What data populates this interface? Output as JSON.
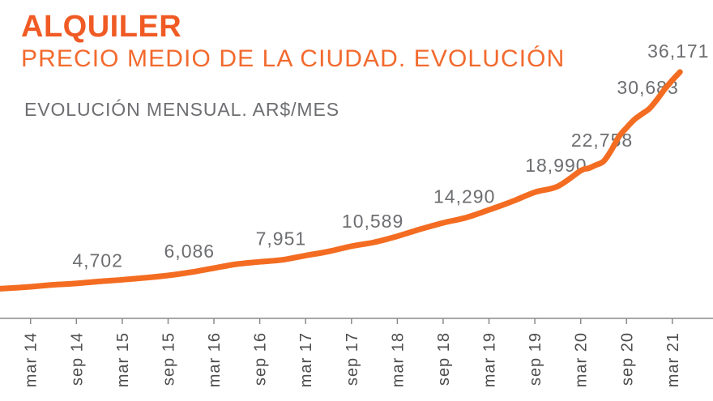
{
  "chart_data": {
    "type": "line",
    "title": "ALQUILER",
    "subtitle": "PRECIO MEDIO DE LA CIUDAD. EVOLUCIÓN",
    "note": "EVOLUCIÓN MENSUAL. AR$/MES",
    "x": [
      "2013-11",
      "2014-03",
      "2014-06",
      "2014-09",
      "2014-12",
      "2015-03",
      "2015-06",
      "2015-09",
      "2015-12",
      "2016-03",
      "2016-06",
      "2016-09",
      "2016-12",
      "2017-03",
      "2017-06",
      "2017-09",
      "2017-12",
      "2018-03",
      "2018-06",
      "2018-09",
      "2018-12",
      "2019-03",
      "2019-06",
      "2019-09",
      "2019-12",
      "2020-03",
      "2020-04",
      "2020-05",
      "2020-06",
      "2020-07",
      "2020-08",
      "2020-09",
      "2020-10",
      "2020-11",
      "2020-12",
      "2021-01",
      "2021-02",
      "2021-03",
      "2021-04"
    ],
    "y": [
      3600,
      3900,
      4200,
      4400,
      4702,
      4950,
      5250,
      5600,
      6086,
      6700,
      7300,
      7650,
      7951,
      8600,
      9200,
      10000,
      10589,
      11500,
      12550,
      13500,
      14290,
      15450,
      16700,
      18100,
      18990,
      21350,
      21700,
      22200,
      22758,
      24400,
      26450,
      27800,
      29000,
      29850,
      30683,
      32050,
      33600,
      34950,
      36171
    ],
    "xlim": [
      "2013-11",
      "2021-08"
    ],
    "ylim": [
      0,
      47000
    ],
    "grid": false,
    "x_ticks": [
      {
        "x": "2014-03",
        "label": "mar 14"
      },
      {
        "x": "2014-09",
        "label": "sep 14"
      },
      {
        "x": "2015-03",
        "label": "mar 15"
      },
      {
        "x": "2015-09",
        "label": "sep 15"
      },
      {
        "x": "2016-03",
        "label": "mar 16"
      },
      {
        "x": "2016-09",
        "label": "sep 16"
      },
      {
        "x": "2017-03",
        "label": "mar 17"
      },
      {
        "x": "2017-09",
        "label": "sep 17"
      },
      {
        "x": "2018-03",
        "label": "mar 18"
      },
      {
        "x": "2018-09",
        "label": "sep 18"
      },
      {
        "x": "2019-03",
        "label": "mar 19"
      },
      {
        "x": "2019-09",
        "label": "sep 19"
      },
      {
        "x": "2020-03",
        "label": "mar 20"
      },
      {
        "x": "2020-09",
        "label": "sep 20"
      },
      {
        "x": "2021-03",
        "label": "mar 21"
      }
    ],
    "data_labels": [
      {
        "x": "2014-12",
        "value": 4702,
        "text": "4,702"
      },
      {
        "x": "2015-12",
        "value": 6086,
        "text": "6,086"
      },
      {
        "x": "2016-12",
        "value": 7951,
        "text": "7,951"
      },
      {
        "x": "2017-12",
        "value": 10589,
        "text": "10,589"
      },
      {
        "x": "2018-12",
        "value": 14290,
        "text": "14,290"
      },
      {
        "x": "2019-12",
        "value": 18990,
        "text": "18,990"
      },
      {
        "x": "2020-06",
        "value": 22758,
        "text": "22,758"
      },
      {
        "x": "2020-12",
        "value": 30683,
        "text": "30,683"
      },
      {
        "x": "2021-04",
        "value": 36171,
        "text": "36,171"
      }
    ],
    "colors": {
      "title": "#F05A24",
      "subtitle": "#F26A2E",
      "line": "#F36C21",
      "note_text": "#6D6E71",
      "data_label": "#6D6E71",
      "tick_text": "#4D4D4D",
      "axis": "#8A8A8A"
    }
  }
}
